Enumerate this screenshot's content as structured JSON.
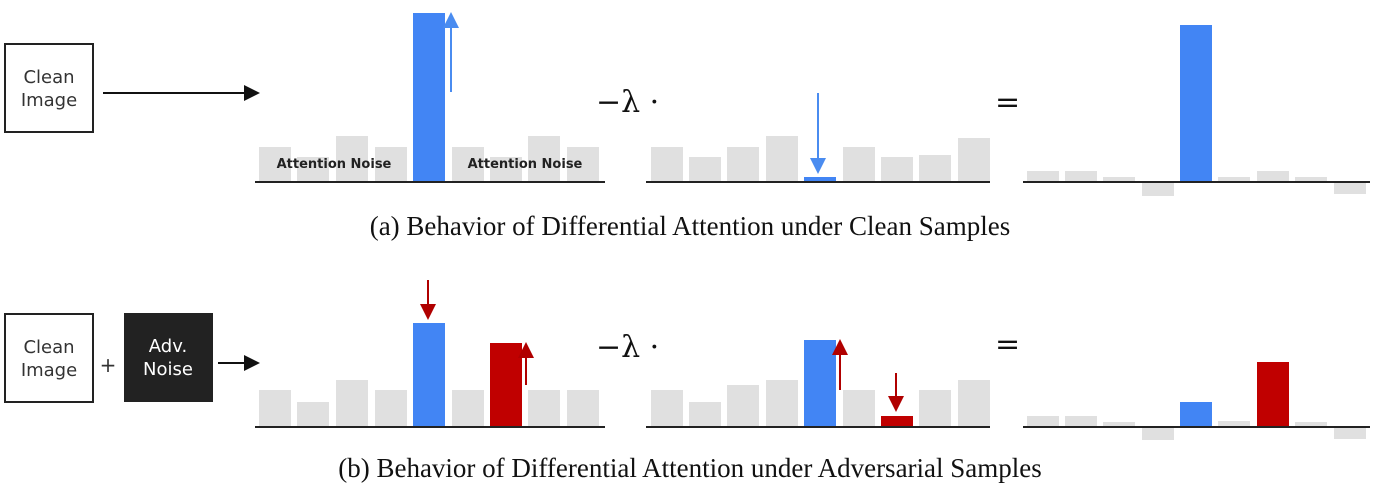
{
  "panel_a": {
    "input": {
      "line1": "Clean",
      "line2": "Image"
    },
    "noise_labels": [
      "Attention Noise",
      "Attention Noise"
    ],
    "operator": "−λ ·",
    "equals": "=",
    "caption": "(a)  Behavior of Differential Attention under Clean Samples"
  },
  "panel_b": {
    "input": {
      "line1": "Clean",
      "line2": "Image"
    },
    "plus": "+",
    "noise": {
      "line1": "Adv.",
      "line2": "Noise"
    },
    "operator": "−λ ·",
    "equals": "=",
    "caption": "(b)  Behavior of Differential Attention under Adversarial Samples"
  }
}
